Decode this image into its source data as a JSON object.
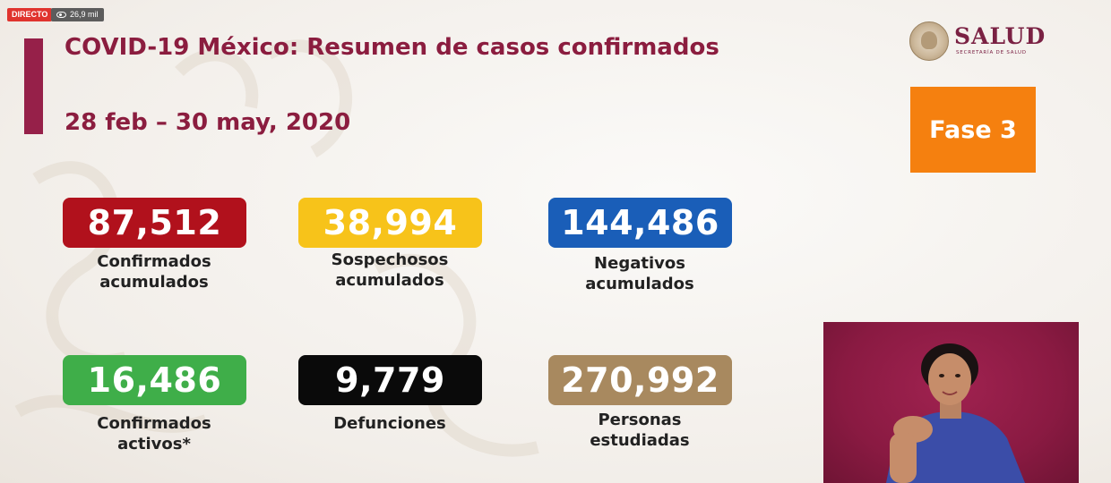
{
  "overlay": {
    "live_label": "DIRECTO",
    "views_icon": "eye-icon",
    "views_count": "26,9 mil"
  },
  "slide": {
    "title": "COVID-19 México: Resumen de casos confirmados",
    "date_range": "28 feb – 30 may, 2020",
    "logo": {
      "word": "SALUD",
      "subtitle": "SECRETARÍA DE SALUD",
      "icon": "national-seal-icon"
    },
    "phase_label": "Fase 3",
    "stats": [
      {
        "id": "confirmados",
        "value": "87,512",
        "label_line1": "Confirmados",
        "label_line2": "acumulados",
        "color": "#b1111c"
      },
      {
        "id": "sospechosos",
        "value": "38,994",
        "label_line1": "Sospechosos",
        "label_line2": "acumulados",
        "color": "#f7c31a"
      },
      {
        "id": "negativos",
        "value": "144,486",
        "label_line1": "Negativos",
        "label_line2": "acumulados",
        "color": "#1a5eb8"
      },
      {
        "id": "activos",
        "value": "16,486",
        "label_line1": "Confirmados",
        "label_line2": "activos*",
        "color": "#3fae49"
      },
      {
        "id": "defunciones",
        "value": "9,779",
        "label_line1": "Defunciones",
        "label_line2": "",
        "color": "#0a0a0a"
      },
      {
        "id": "personas",
        "value": "270,992",
        "label_line1": "Personas",
        "label_line2": "estudiadas",
        "color": "#a8895f"
      }
    ],
    "colors": {
      "accent": "#962049",
      "title": "#8b1d3f",
      "phase": "#f5800f",
      "interpreter_bg": "#8a1a42"
    }
  }
}
